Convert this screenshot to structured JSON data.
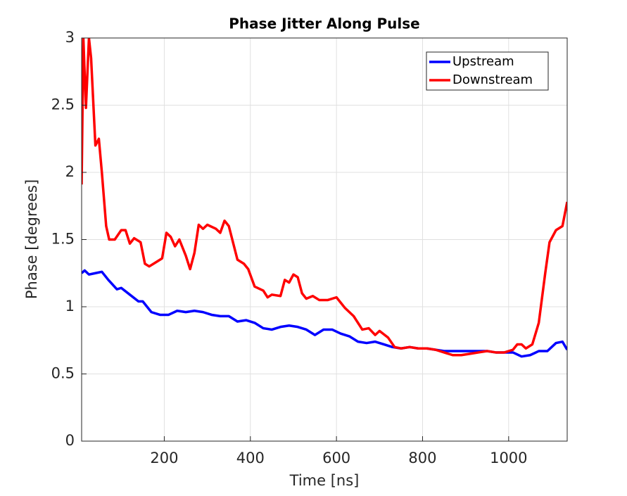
{
  "chart_data": {
    "type": "line",
    "title": "Phase Jitter Along Pulse",
    "x_label": "Time [ns]",
    "y_label": "Phase [degrees]",
    "xlim": [
      8,
      1136
    ],
    "ylim": [
      0,
      3
    ],
    "xticks": [
      200,
      400,
      600,
      800,
      1000
    ],
    "yticks": [
      0,
      0.5,
      1,
      1.5,
      2,
      2.5,
      3
    ],
    "grid": true,
    "legend": "northeast",
    "series": [
      {
        "name": "Upstream",
        "color": "#0000ff",
        "x": [
          8,
          15,
          25,
          40,
          55,
          70,
          90,
          100,
          120,
          140,
          150,
          170,
          190,
          210,
          230,
          250,
          270,
          290,
          310,
          330,
          350,
          370,
          390,
          410,
          430,
          450,
          470,
          490,
          510,
          530,
          550,
          570,
          590,
          610,
          630,
          650,
          670,
          690,
          710,
          730,
          750,
          770,
          790,
          810,
          830,
          850,
          870,
          890,
          910,
          930,
          950,
          970,
          990,
          1010,
          1030,
          1050,
          1070,
          1090,
          1110,
          1125,
          1136
        ],
        "values": [
          1.25,
          1.27,
          1.24,
          1.25,
          1.26,
          1.2,
          1.13,
          1.14,
          1.09,
          1.04,
          1.04,
          0.96,
          0.94,
          0.94,
          0.97,
          0.96,
          0.97,
          0.96,
          0.94,
          0.93,
          0.93,
          0.89,
          0.9,
          0.88,
          0.84,
          0.83,
          0.85,
          0.86,
          0.85,
          0.83,
          0.79,
          0.83,
          0.83,
          0.8,
          0.78,
          0.74,
          0.73,
          0.74,
          0.72,
          0.7,
          0.69,
          0.7,
          0.69,
          0.69,
          0.68,
          0.67,
          0.67,
          0.67,
          0.67,
          0.67,
          0.67,
          0.66,
          0.66,
          0.66,
          0.63,
          0.64,
          0.67,
          0.67,
          0.73,
          0.74,
          0.68
        ]
      },
      {
        "name": "Downstream",
        "color": "#ff0000",
        "x": [
          8,
          12,
          18,
          25,
          30,
          40,
          48,
          55,
          65,
          72,
          85,
          100,
          110,
          120,
          130,
          145,
          155,
          165,
          180,
          195,
          205,
          215,
          225,
          235,
          250,
          260,
          270,
          280,
          290,
          300,
          320,
          330,
          340,
          350,
          370,
          385,
          395,
          410,
          430,
          440,
          450,
          470,
          480,
          490,
          500,
          510,
          520,
          530,
          545,
          560,
          580,
          600,
          620,
          640,
          660,
          675,
          690,
          700,
          720,
          735,
          750,
          770,
          790,
          810,
          830,
          850,
          870,
          890,
          910,
          930,
          950,
          970,
          990,
          1010,
          1020,
          1030,
          1040,
          1055,
          1070,
          1085,
          1095,
          1110,
          1125,
          1136
        ],
        "values": [
          1.91,
          3.0,
          2.48,
          3.0,
          2.85,
          2.2,
          2.25,
          2.0,
          1.6,
          1.5,
          1.5,
          1.57,
          1.57,
          1.47,
          1.51,
          1.48,
          1.32,
          1.3,
          1.33,
          1.36,
          1.55,
          1.52,
          1.45,
          1.5,
          1.38,
          1.28,
          1.4,
          1.61,
          1.58,
          1.61,
          1.58,
          1.55,
          1.64,
          1.6,
          1.35,
          1.32,
          1.28,
          1.15,
          1.12,
          1.07,
          1.09,
          1.08,
          1.2,
          1.18,
          1.24,
          1.22,
          1.1,
          1.06,
          1.08,
          1.05,
          1.05,
          1.07,
          0.99,
          0.93,
          0.83,
          0.84,
          0.79,
          0.82,
          0.77,
          0.7,
          0.69,
          0.7,
          0.69,
          0.69,
          0.68,
          0.66,
          0.64,
          0.64,
          0.65,
          0.66,
          0.67,
          0.66,
          0.66,
          0.68,
          0.72,
          0.72,
          0.69,
          0.72,
          0.88,
          1.25,
          1.48,
          1.57,
          1.6,
          1.78
        ]
      }
    ]
  }
}
